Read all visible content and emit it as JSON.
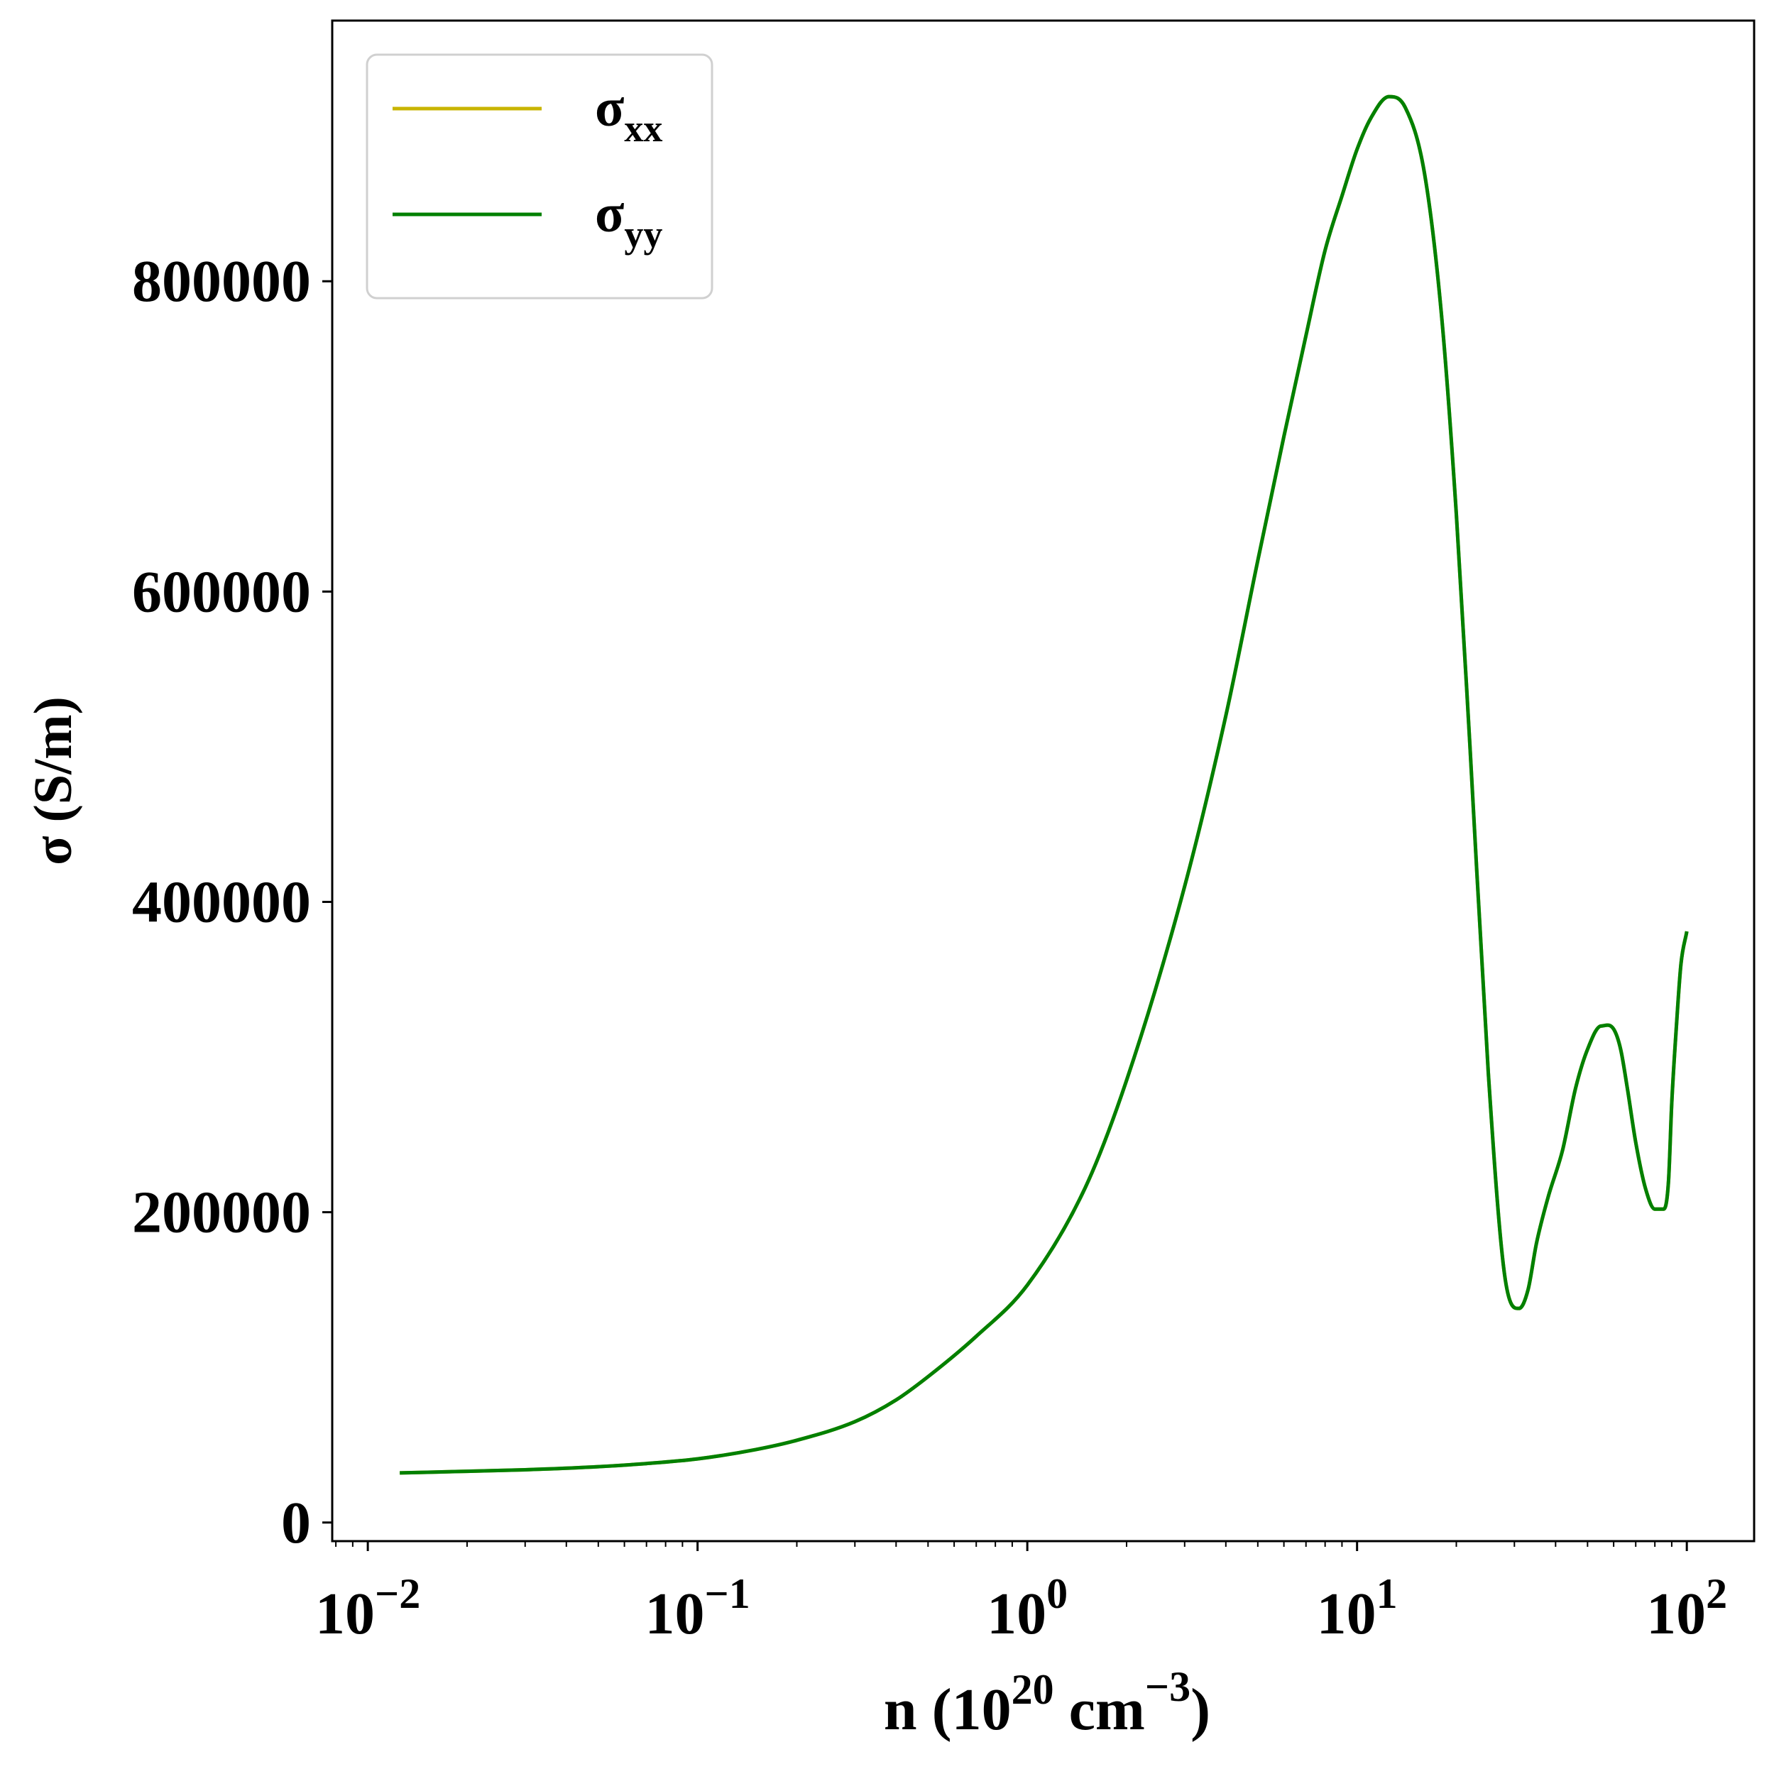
{
  "chart_data": {
    "type": "line",
    "xscale": "log",
    "xlim": [
      0.0078,
      160
    ],
    "ylim": [
      -12000,
      968000
    ],
    "xlabel": {
      "base": "n (10",
      "sup1": "20",
      "mid": " cm",
      "sup2": "−3",
      "end": ")"
    },
    "ylabel": "σ (S/m)",
    "y_ticks": [
      0,
      200000,
      400000,
      600000,
      800000
    ],
    "y_tick_labels": [
      "0",
      "200000",
      "400000",
      "600000",
      "800000"
    ],
    "x_ticks": [
      0.01,
      0.1,
      1,
      10,
      100
    ],
    "x_tick_labels": [
      {
        "base": "10",
        "exp": "−2"
      },
      {
        "base": "10",
        "exp": "−1"
      },
      {
        "base": "10",
        "exp": "0"
      },
      {
        "base": "10",
        "exp": "1"
      },
      {
        "base": "10",
        "exp": "2"
      }
    ],
    "legend": {
      "placement": "upper-left",
      "entries": [
        {
          "sym": "σ",
          "sub": "xx",
          "color": "#c8b400"
        },
        {
          "sym": "σ",
          "sub": "yy",
          "color": "#008000"
        }
      ]
    },
    "series": [
      {
        "key": "sigma_xx",
        "color": "#c8b400",
        "x": [
          0.0125,
          0.02,
          0.03,
          0.05,
          0.07,
          0.1,
          0.15,
          0.2,
          0.3,
          0.4,
          0.5,
          0.7,
          1.0,
          1.5,
          2,
          3,
          4,
          5,
          6,
          7,
          8,
          9,
          10,
          11,
          12.5,
          14,
          16,
          18,
          20,
          22,
          25,
          28,
          31,
          33,
          35,
          38,
          42,
          46,
          50,
          55,
          60,
          63,
          66,
          70,
          75,
          80,
          85,
          88,
          90,
          93,
          96,
          100
        ],
        "y": [
          32000,
          33000,
          34000,
          36000,
          38000,
          41000,
          47000,
          53000,
          65000,
          79000,
          94000,
          120000,
          153000,
          216000,
          285000,
          410000,
          520000,
          620000,
          700000,
          765000,
          820000,
          855000,
          885000,
          905000,
          919000,
          912000,
          870000,
          780000,
          650000,
          500000,
          290000,
          160000,
          138000,
          150000,
          180000,
          210000,
          240000,
          280000,
          305000,
          320000,
          318000,
          305000,
          280000,
          245000,
          215000,
          202000,
          202000,
          220000,
          270000,
          320000,
          360000,
          381000
        ]
      },
      {
        "key": "sigma_yy",
        "color": "#008000",
        "x": [
          0.0125,
          0.02,
          0.03,
          0.05,
          0.07,
          0.1,
          0.15,
          0.2,
          0.3,
          0.4,
          0.5,
          0.7,
          1.0,
          1.5,
          2,
          3,
          4,
          5,
          6,
          7,
          8,
          9,
          10,
          11,
          12.5,
          14,
          16,
          18,
          20,
          22,
          25,
          28,
          31,
          33,
          35,
          38,
          42,
          46,
          50,
          55,
          60,
          63,
          66,
          70,
          75,
          80,
          85,
          88,
          90,
          93,
          96,
          100
        ],
        "y": [
          32000,
          33000,
          34000,
          36000,
          38000,
          41000,
          47000,
          53000,
          65000,
          79000,
          94000,
          120000,
          153000,
          216000,
          285000,
          410000,
          520000,
          620000,
          700000,
          765000,
          820000,
          855000,
          885000,
          905000,
          919000,
          912000,
          870000,
          780000,
          650000,
          500000,
          290000,
          160000,
          138000,
          150000,
          180000,
          210000,
          240000,
          280000,
          305000,
          320000,
          318000,
          305000,
          280000,
          245000,
          215000,
          202000,
          202000,
          220000,
          270000,
          320000,
          360000,
          381000
        ]
      }
    ]
  }
}
